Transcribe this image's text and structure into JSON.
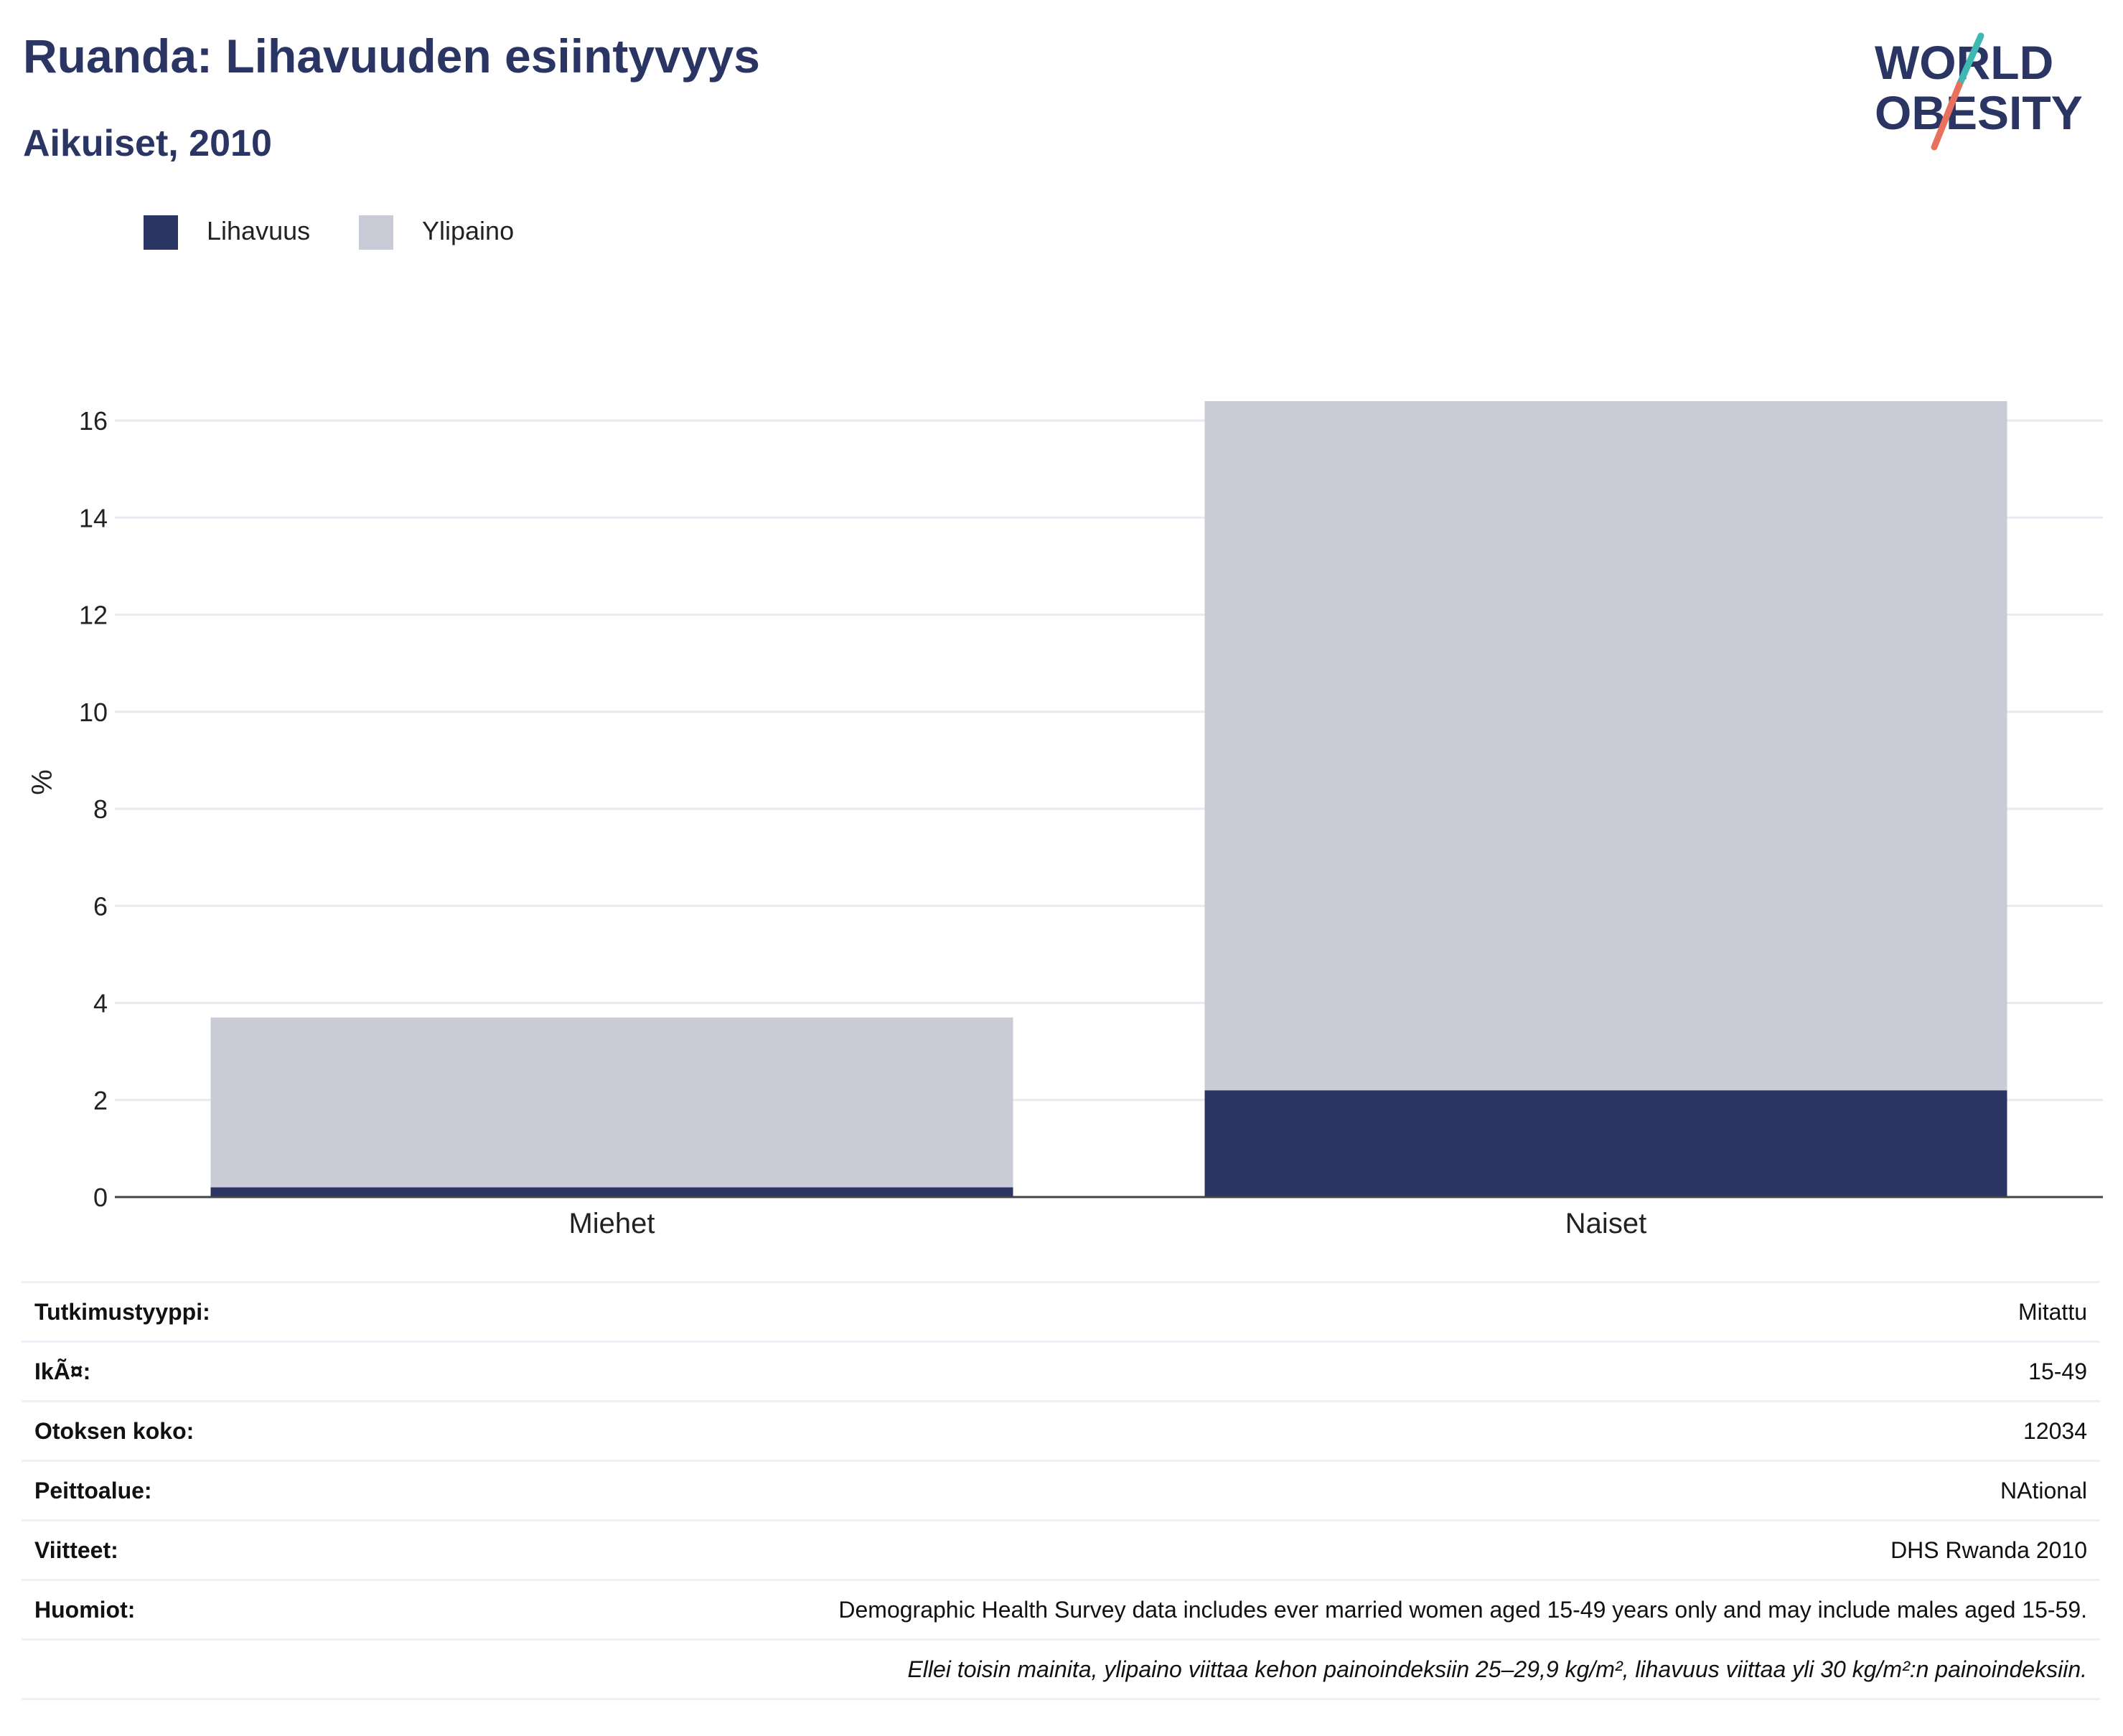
{
  "header": {
    "title": "Ruanda: Lihavuuden esiintyvyys",
    "subtitle": "Aikuiset, 2010"
  },
  "logo": {
    "line1": "WORLD",
    "line2": "OBESITY",
    "text_color": "#2a3564",
    "slash_top_color": "#3fb8b4",
    "slash_bottom_color": "#e8705c"
  },
  "legend": [
    {
      "label": "Lihavuus",
      "color": "#2a3564"
    },
    {
      "label": "Ylipaino",
      "color": "#c9cbd7"
    }
  ],
  "chart_data": {
    "type": "bar",
    "stacked": true,
    "categories": [
      "Miehet",
      "Naiset"
    ],
    "series": [
      {
        "name": "Lihavuus",
        "color": "#2a3564",
        "values": [
          0.2,
          2.2
        ]
      },
      {
        "name": "Ylipaino",
        "color": "#c9cbd7",
        "values": [
          3.5,
          14.2
        ]
      }
    ],
    "ylabel": "%",
    "ylim": [
      0,
      16.5
    ],
    "yticks": [
      0,
      2,
      4,
      6,
      8,
      10,
      12,
      14,
      16
    ],
    "grid": true,
    "legend_position": "top-left"
  },
  "info_table": [
    {
      "key": "Tutkimustyyppi:",
      "value": "Mitattu"
    },
    {
      "key": "IkÃ¤:",
      "value": "15-49"
    },
    {
      "key": "Otoksen koko:",
      "value": "12034"
    },
    {
      "key": "Peittoalue:",
      "value": "NAtional"
    },
    {
      "key": "Viitteet:",
      "value": "DHS Rwanda 2010"
    },
    {
      "key": "Huomiot:",
      "value": "Demographic Health Survey data includes ever married women aged 15-49 years only and may include males aged 15-59."
    }
  ],
  "footnote": "Ellei toisin mainita, ylipaino viittaa kehon painoindeksiin 25–29,9 kg/m², lihavuus viittaa yli 30 kg/m²:n painoindeksiin."
}
